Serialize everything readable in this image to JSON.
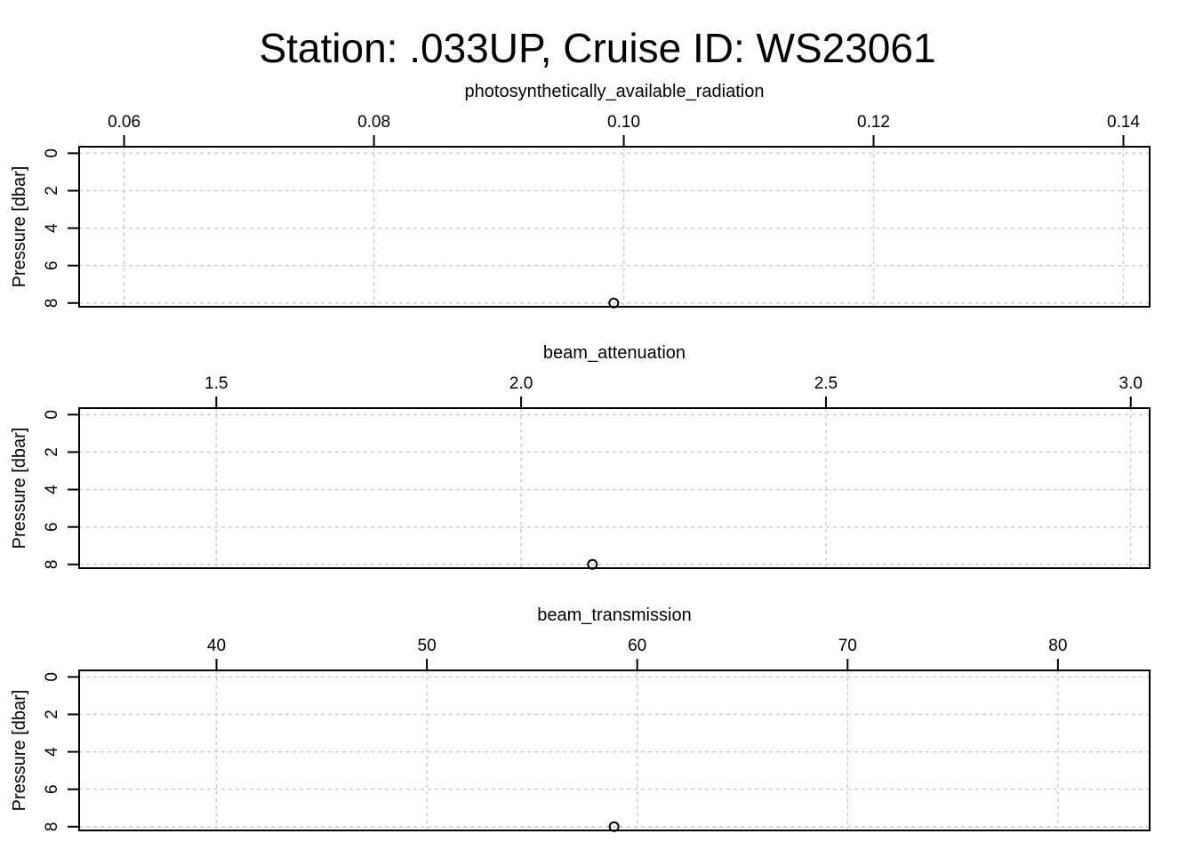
{
  "chart_data": {
    "type": "scatter",
    "title": "Station: .033UP, Cruise ID: WS23061",
    "grid": true,
    "panels": [
      {
        "title": "photosynthetically_available_radiation",
        "xlabel": "photosynthetically_available_radiation",
        "ylabel": "Pressure [dbar]",
        "x_axis_position": "top",
        "y_reversed": true,
        "xlim": [
          0.0564,
          0.1421
        ],
        "ylim": [
          8.2,
          -0.35
        ],
        "x_ticks": [
          {
            "value": 0.06,
            "label": "0.06"
          },
          {
            "value": 0.08,
            "label": "0.08"
          },
          {
            "value": 0.1,
            "label": "0.10"
          },
          {
            "value": 0.12,
            "label": "0.12"
          },
          {
            "value": 0.14,
            "label": "0.14"
          }
        ],
        "y_ticks": [
          {
            "value": 0,
            "label": "0"
          },
          {
            "value": 2,
            "label": "2"
          },
          {
            "value": 4,
            "label": "4"
          },
          {
            "value": 6,
            "label": "6"
          },
          {
            "value": 8,
            "label": "8"
          }
        ],
        "points": [
          {
            "x": 0.0992,
            "y": 8
          }
        ]
      },
      {
        "title": "beam_attenuation",
        "xlabel": "beam_attenuation",
        "ylabel": "Pressure [dbar]",
        "x_axis_position": "top",
        "y_reversed": true,
        "xlim": [
          1.275,
          3.031
        ],
        "ylim": [
          8.2,
          -0.35
        ],
        "x_ticks": [
          {
            "value": 1.5,
            "label": "1.5"
          },
          {
            "value": 2.0,
            "label": "2.0"
          },
          {
            "value": 2.5,
            "label": "2.5"
          },
          {
            "value": 3.0,
            "label": "3.0"
          }
        ],
        "y_ticks": [
          {
            "value": 0,
            "label": "0"
          },
          {
            "value": 2,
            "label": "2"
          },
          {
            "value": 4,
            "label": "4"
          },
          {
            "value": 6,
            "label": "6"
          },
          {
            "value": 8,
            "label": "8"
          }
        ],
        "points": [
          {
            "x": 2.117,
            "y": 8
          }
        ]
      },
      {
        "title": "beam_transmission",
        "xlabel": "beam_transmission",
        "ylabel": "Pressure [dbar]",
        "x_axis_position": "top",
        "y_reversed": true,
        "xlim": [
          33.47,
          84.36
        ],
        "ylim": [
          8.2,
          -0.35
        ],
        "x_ticks": [
          {
            "value": 40,
            "label": "40"
          },
          {
            "value": 50,
            "label": "50"
          },
          {
            "value": 60,
            "label": "60"
          },
          {
            "value": 70,
            "label": "70"
          },
          {
            "value": 80,
            "label": "80"
          }
        ],
        "y_ticks": [
          {
            "value": 0,
            "label": "0"
          },
          {
            "value": 2,
            "label": "2"
          },
          {
            "value": 4,
            "label": "4"
          },
          {
            "value": 6,
            "label": "6"
          },
          {
            "value": 8,
            "label": "8"
          }
        ],
        "points": [
          {
            "x": 58.9,
            "y": 8
          }
        ]
      }
    ]
  }
}
